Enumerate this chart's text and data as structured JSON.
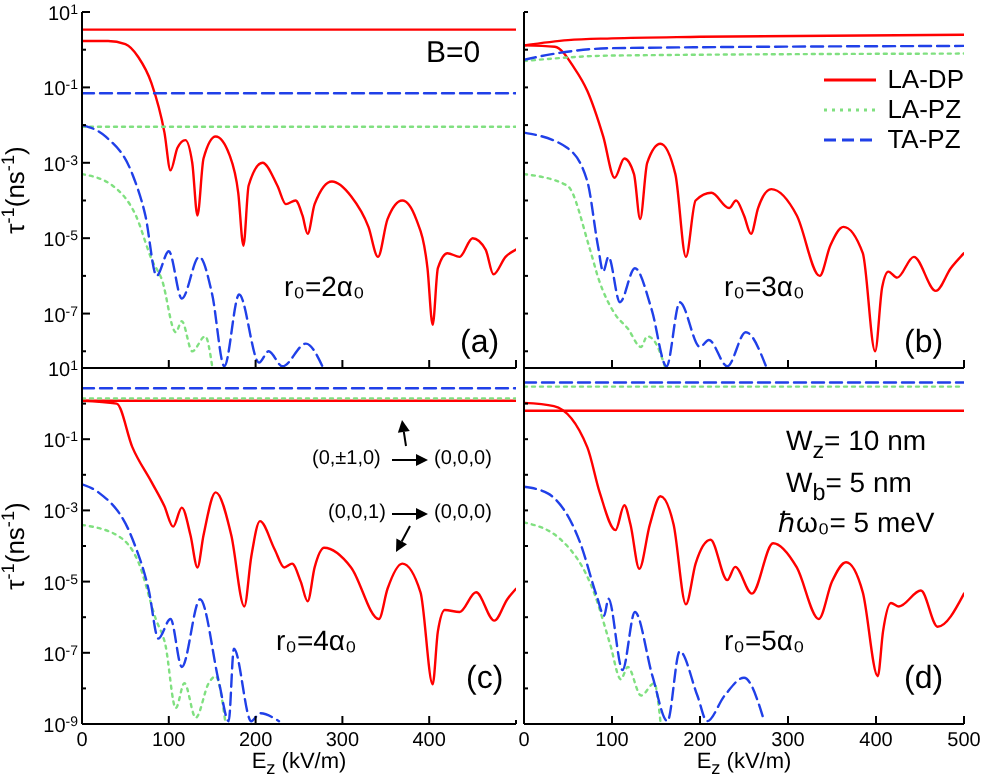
{
  "chart_data": [
    {
      "type": "line",
      "ylabel": "τ$^{-1}$(ns$^{-1}$)",
      "log": "y",
      "tick_labels": "y",
      "xlim": [
        0,
        500
      ],
      "xticks": [
        0,
        100,
        200,
        300,
        400,
        500
      ],
      "ylim": [
        3.6e-09,
        10
      ],
      "yticks": [
        {
          "value": 10,
          "label": "10$^{1}$"
        },
        {
          "value": 1,
          "label": null
        },
        {
          "value": 0.1,
          "label": "10$^{-1}$"
        },
        {
          "value": 0.01,
          "label": null
        },
        {
          "value": 0.001,
          "label": "10$^{-3}$"
        },
        {
          "value": 0.0001,
          "label": null
        },
        {
          "value": 1e-05,
          "label": "10$^{-5}$"
        },
        {
          "value": 1e-06,
          "label": null
        },
        {
          "value": 1e-07,
          "label": "10$^{-7}$"
        },
        {
          "value": 1e-08,
          "label": null
        }
      ],
      "annotations": [
        "B=0",
        "r₀=2α₀",
        "(a)"
      ],
      "series": [
        {
          "color": "#ff0000",
          "line_style": "solid",
          "x": [
            0,
            500
          ],
          "values": [
            3.4,
            3.4
          ]
        },
        {
          "color": "#ff0000",
          "line_style": "solid",
          "x": [
            0,
            30,
            50,
            65,
            80,
            95,
            102,
            110,
            119,
            127,
            133,
            140,
            154,
            170,
            180,
            186,
            192,
            208,
            225,
            235,
            246,
            254,
            260,
            268,
            288,
            310,
            330,
            341,
            352,
            369,
            385,
            398,
            404,
            410,
            421,
            435,
            450,
            465,
            474,
            488,
            500
          ],
          "values": [
            1.7,
            1.7,
            1.4,
            0.63,
            0.13,
            0.0063,
            0.00063,
            0.0025,
            0.004,
            0.001,
            4e-05,
            0.0013,
            0.005,
            0.0016,
            0.00016,
            6.3e-06,
            0.00025,
            0.001,
            0.00025,
            8e-05,
            0.0001,
            4e-05,
            1.3e-05,
            8e-05,
            0.00032,
            0.00013,
            2e-05,
            3.2e-06,
            3.2e-05,
            0.0001,
            3.2e-05,
            1.6e-06,
            5e-08,
            1.6e-06,
            4e-06,
            3.2e-06,
            1e-05,
            5e-06,
            1.1e-06,
            3.2e-06,
            5e-06
          ]
        },
        {
          "color": "#80e080",
          "line_style": "dotted",
          "x": [
            0,
            500
          ],
          "values": [
            0.009,
            0.009
          ]
        },
        {
          "color": "#80e080",
          "line_style": "dotted",
          "x": [
            0,
            35,
            62,
            81,
            92,
            108,
            115,
            127,
            142,
            150
          ],
          "values": [
            0.0005,
            0.00025,
            4e-05,
            2.5e-06,
            8e-07,
            3.2e-08,
            6.3e-08,
            1e-08,
            2.5e-08,
            4e-09
          ]
        },
        {
          "color": "#2040e8",
          "line_style": "dashed",
          "x": [
            0,
            500
          ],
          "values": [
            0.07,
            0.07
          ]
        },
        {
          "color": "#2040e8",
          "line_style": "dashed",
          "x": [
            0,
            27,
            58,
            73,
            86,
            100,
            115,
            135,
            150,
            164,
            181,
            204,
            215,
            231,
            258,
            277
          ],
          "values": [
            0.01,
            0.005,
            0.0005,
            4e-05,
            1e-06,
            4.5e-06,
            2.5e-07,
            3.2e-06,
            3.2e-07,
            4e-09,
            3.2e-07,
            5e-09,
            1e-08,
            4e-09,
            1.6e-08,
            4e-09
          ]
        }
      ]
    },
    {
      "type": "line",
      "log": "y",
      "tick_labels": false,
      "legend": "top right",
      "xlim": [
        0,
        500
      ],
      "xticks": [
        0,
        100,
        200,
        300,
        400,
        500
      ],
      "ylim": [
        3.6e-09,
        10
      ],
      "yticks": [
        {
          "value": 10,
          "label": null
        },
        {
          "value": 1,
          "label": null
        },
        {
          "value": 0.1,
          "label": null
        },
        {
          "value": 0.01,
          "label": null
        },
        {
          "value": 0.001,
          "label": null
        },
        {
          "value": 0.0001,
          "label": null
        },
        {
          "value": 1e-05,
          "label": null
        },
        {
          "value": 1e-06,
          "label": null
        },
        {
          "value": 1e-07,
          "label": null
        },
        {
          "value": 1e-08,
          "label": null
        }
      ],
      "annotations": [
        "r₀=3α₀",
        "(b)"
      ],
      "series": [
        {
          "name": "LA-DP",
          "color": "#ff0000",
          "line_style": "solid",
          "x": [
            0,
            50,
            100,
            200,
            500
          ],
          "values": [
            1.3,
            1.8,
            2.0,
            2.2,
            2.5
          ]
        },
        {
          "color": "#ff0000",
          "line_style": "solid",
          "x": [
            0,
            35,
            57,
            72,
            90,
            103,
            114,
            125,
            132,
            140,
            155,
            172,
            184,
            195,
            213,
            233,
            241,
            250,
            258,
            266,
            281,
            310,
            336,
            348,
            363,
            385,
            399,
            407,
            414,
            424,
            443,
            468,
            485,
            500
          ],
          "values": [
            1.3,
            1.2,
            0.33,
            0.08,
            0.005,
            0.0004,
            0.0013,
            0.0005,
            3.2e-05,
            0.001,
            0.0032,
            0.0005,
            3.2e-06,
            0.0001,
            0.00016,
            6.3e-05,
            0.0001,
            4e-05,
            1.3e-05,
            6.3e-05,
            0.0002,
            4e-05,
            1e-06,
            6.3e-06,
            2e-05,
            4e-06,
            1e-08,
            5e-07,
            1.3e-06,
            9e-07,
            3.2e-06,
            4e-07,
            1.6e-06,
            4e-06
          ]
        },
        {
          "name": "LA-PZ",
          "color": "#80e080",
          "line_style": "dotted",
          "x": [
            0,
            100,
            500
          ],
          "values": [
            0.5,
            0.7,
            0.79
          ]
        },
        {
          "color": "#80e080",
          "line_style": "dotted",
          "x": [
            0,
            49,
            75,
            85,
            103,
            118,
            133,
            140,
            150,
            160
          ],
          "values": [
            0.0005,
            0.00025,
            5e-06,
            8e-07,
            1e-07,
            4e-08,
            1.3e-08,
            2.5e-08,
            1.6e-08,
            4e-09
          ]
        },
        {
          "name": "TA-PZ",
          "color": "#2040e8",
          "line_style": "dashed",
          "x": [
            0,
            30,
            100,
            500
          ],
          "values": [
            0.54,
            0.75,
            1.1,
            1.26
          ]
        },
        {
          "color": "#2040e8",
          "line_style": "dashed",
          "x": [
            0,
            49,
            72,
            84,
            90,
            96,
            109,
            126,
            145,
            162,
            177,
            200,
            210,
            231,
            252,
            275
          ],
          "values": [
            0.0063,
            0.0025,
            0.00032,
            6.3e-06,
            1.3e-06,
            3.2e-06,
            2e-07,
            1.6e-06,
            1.3e-07,
            4e-09,
            2e-07,
            1.3e-08,
            2e-08,
            4e-09,
            3.2e-08,
            4e-09
          ]
        }
      ]
    },
    {
      "type": "line",
      "ylabel": "τ$^{-1}$(ns$^{-1}$)",
      "xlabel": "E$_{z}$ (kV/m)",
      "log": "y",
      "xlim": [
        0,
        500
      ],
      "xticks": [
        0,
        100,
        200,
        300,
        400,
        {
          "value": 500,
          "label": null
        }
      ],
      "ylim": [
        1e-09,
        10
      ],
      "yticks": [
        {
          "value": 10,
          "label": "10$^{1}$"
        },
        {
          "value": 1,
          "label": null
        },
        {
          "value": 0.1,
          "label": "10$^{-1}$"
        },
        {
          "value": 0.01,
          "label": null
        },
        {
          "value": 0.001,
          "label": "10$^{-3}$"
        },
        {
          "value": 0.0001,
          "label": null
        },
        {
          "value": 1e-05,
          "label": "10$^{-5}$"
        },
        {
          "value": 1e-06,
          "label": null
        },
        {
          "value": 1e-07,
          "label": "10$^{-7}$"
        },
        {
          "value": 1e-08,
          "label": null
        },
        {
          "value": 1e-09,
          "label": "10$^{-9}$"
        }
      ],
      "annotations": [
        "(0,±1,0)",
        "(0,0,0)",
        "(0,0,1)",
        "(0,0,0)",
        "r₀=4α₀",
        "(c)"
      ],
      "series": [
        {
          "color": "#ff0000",
          "line_style": "solid",
          "x": [
            0,
            500
          ],
          "values": [
            1.2,
            1.2
          ]
        },
        {
          "color": "#ff0000",
          "line_style": "solid",
          "x": [
            0,
            40,
            58,
            80,
            95,
            105,
            115,
            125,
            133,
            140,
            154,
            172,
            187,
            195,
            205,
            222,
            233,
            242,
            252,
            260,
            268,
            279,
            310,
            342,
            352,
            369,
            390,
            404,
            410,
            418,
            435,
            454,
            475,
            490,
            500
          ],
          "values": [
            1.2,
            1.0,
            0.06,
            0.0063,
            0.0013,
            0.00035,
            0.0012,
            0.0002,
            2.5e-05,
            0.0002,
            0.0032,
            0.0002,
            2e-06,
            5e-05,
            0.0005,
            8e-05,
            2.5e-05,
            3.2e-05,
            1e-05,
            2.8e-06,
            2.5e-05,
            8.9e-05,
            2.5e-05,
            8.9e-07,
            6.3e-06,
            3.2e-05,
            5e-06,
            1.3e-08,
            4e-07,
            1.6e-06,
            1.4e-06,
            5e-06,
            8e-07,
            3.2e-06,
            6.3e-06
          ]
        },
        {
          "color": "#80e080",
          "line_style": "dotted",
          "x": [
            0,
            500
          ],
          "values": [
            1.4,
            1.4
          ]
        },
        {
          "color": "#80e080",
          "line_style": "dotted",
          "x": [
            0,
            42,
            65,
            85,
            96,
            108,
            118,
            131,
            146,
            154,
            165
          ],
          "values": [
            0.00039,
            0.00019,
            3.5e-05,
            8.9e-07,
            1.7e-07,
            2.8e-09,
            1.4e-08,
            1.5e-09,
            1.4e-08,
            2.2e-08,
            1.2e-09
          ]
        },
        {
          "color": "#2040e8",
          "line_style": "dashed",
          "x": [
            0,
            500
          ],
          "values": [
            2.7,
            2.7
          ]
        },
        {
          "color": "#2040e8",
          "line_style": "dashed",
          "x": [
            0,
            19,
            58,
            77,
            88,
            102,
            115,
            136,
            158,
            169,
            175,
            195,
            205,
            227
          ],
          "values": [
            0.0054,
            0.0032,
            0.00016,
            5.6e-06,
            2.5e-07,
            8.9e-07,
            4e-08,
            3.2e-06,
            1.4e-08,
            1.2e-09,
            1.3e-07,
            1.2e-09,
            2e-09,
            1.2e-09
          ]
        }
      ]
    },
    {
      "type": "line",
      "xlabel": "E$_{z}$ (kV/m)",
      "log": "y",
      "tick_labels": "x",
      "xlim": [
        0,
        500
      ],
      "xticks": [
        0,
        100,
        200,
        300,
        400,
        500
      ],
      "ylim": [
        1e-09,
        10
      ],
      "yticks": [
        {
          "value": 10,
          "label": null
        },
        {
          "value": 1,
          "label": null
        },
        {
          "value": 0.1,
          "label": null
        },
        {
          "value": 0.01,
          "label": null
        },
        {
          "value": 0.001,
          "label": null
        },
        {
          "value": 0.0001,
          "label": null
        },
        {
          "value": 1e-05,
          "label": null
        },
        {
          "value": 1e-06,
          "label": null
        },
        {
          "value": 1e-07,
          "label": null
        },
        {
          "value": 1e-08,
          "label": null
        },
        {
          "value": 1e-09,
          "label": null
        }
      ],
      "annotations": [
        "W$_{z}$= 10 nm",
        "W$_{b}$= 5 nm",
        "ℏω₀= 5 meV",
        "r₀=5α₀",
        "(d)"
      ],
      "series": [
        {
          "color": "#ff0000",
          "line_style": "solid",
          "x": [
            0,
            500
          ],
          "values": [
            0.63,
            0.63
          ]
        },
        {
          "color": "#ff0000",
          "line_style": "solid",
          "x": [
            0,
            34,
            72,
            86,
            104,
            114,
            121,
            131,
            143,
            155,
            170,
            184,
            195,
            212,
            231,
            240,
            259,
            283,
            310,
            335,
            350,
            366,
            385,
            402,
            408,
            417,
            426,
            451,
            470,
            500
          ],
          "values": [
            1.05,
            0.85,
            0.059,
            0.0032,
            0.00028,
            0.0014,
            0.0004,
            2.3e-05,
            0.0004,
            0.0025,
            0.0004,
            2.3e-06,
            3.2e-05,
            0.00015,
            1.1e-05,
            2.6e-05,
            4.6e-06,
            0.00012,
            2.5e-05,
            8.9e-07,
            1e-05,
            3.5e-05,
            5e-06,
            2.2e-08,
            4e-07,
            2.5e-06,
            2e-06,
            5.6e-06,
            5.4e-07,
            4.6e-06
          ]
        },
        {
          "color": "#80e080",
          "line_style": "dotted",
          "x": [
            0,
            500
          ],
          "values": [
            3.0,
            3.0
          ]
        },
        {
          "color": "#80e080",
          "line_style": "dotted",
          "x": [
            0,
            42,
            80,
            98,
            110,
            118,
            133,
            148,
            155
          ],
          "values": [
            0.00046,
            0.00015,
            4.6e-06,
            1.7e-07,
            1.8e-08,
            4e-08,
            6.3e-09,
            1.4e-08,
            1.2e-09
          ]
        },
        {
          "color": "#2040e8",
          "line_style": "dashed",
          "x": [
            0,
            500
          ],
          "values": [
            3.9,
            3.9
          ]
        },
        {
          "color": "#2040e8",
          "line_style": "dashed",
          "x": [
            0,
            27,
            64,
            83,
            91,
            96,
            112,
            126,
            146,
            163,
            177,
            197,
            208,
            228,
            250,
            273
          ],
          "values": [
            0.0046,
            0.003,
            0.00012,
            3.7e-06,
            1.1e-06,
            3.3e-06,
            3.3e-08,
            1.4e-06,
            2.2e-08,
            1.2e-09,
            1.1e-07,
            6.3e-09,
            1.2e-09,
            6.3e-09,
            2e-08,
            1.2e-09
          ]
        }
      ]
    }
  ]
}
